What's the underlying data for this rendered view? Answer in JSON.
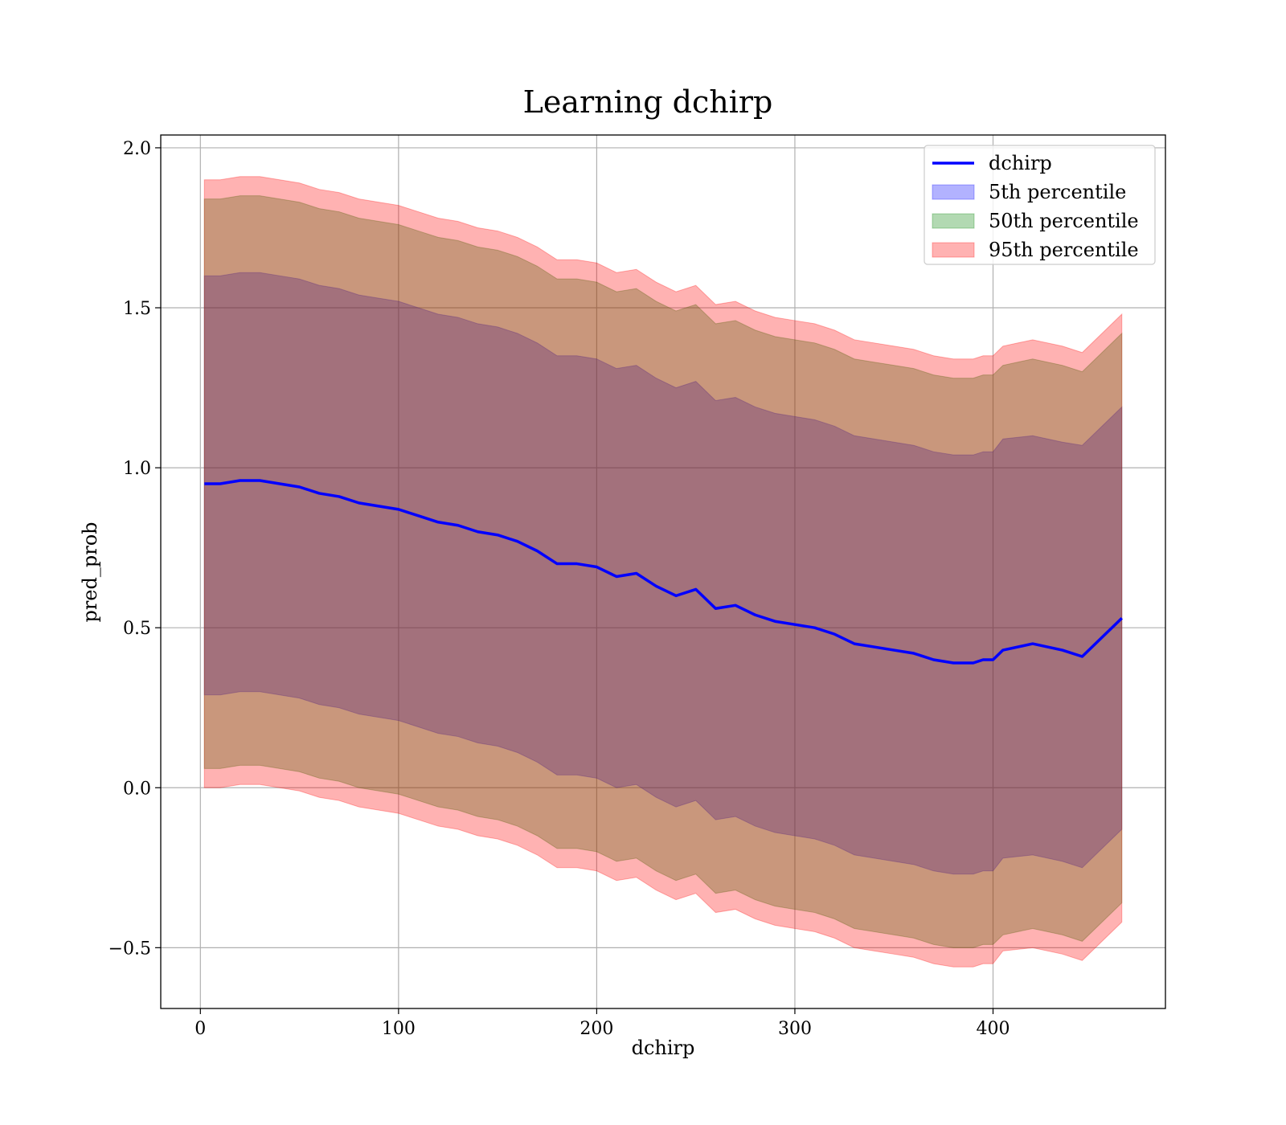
{
  "chart_data": {
    "type": "area",
    "title": "Learning dchirp",
    "xlabel": "dchirp",
    "ylabel": "pred_prob",
    "xlim": [
      -20,
      487
    ],
    "ylim": [
      -0.69,
      2.04
    ],
    "xticks": [
      0,
      100,
      200,
      300,
      400
    ],
    "xtick_labels": [
      "0",
      "100",
      "200",
      "300",
      "400"
    ],
    "yticks": [
      -0.5,
      0.0,
      0.5,
      1.0,
      1.5,
      2.0
    ],
    "ytick_labels": [
      "−0.5",
      "0.0",
      "0.5",
      "1.0",
      "1.5",
      "2.0"
    ],
    "grid": true,
    "legend_position": "top-right",
    "x": [
      2,
      10,
      20,
      30,
      40,
      50,
      60,
      70,
      80,
      90,
      100,
      110,
      120,
      130,
      140,
      150,
      160,
      170,
      180,
      190,
      200,
      210,
      220,
      230,
      240,
      250,
      260,
      270,
      280,
      290,
      300,
      310,
      320,
      330,
      340,
      350,
      360,
      370,
      380,
      390,
      395,
      400,
      405,
      420,
      435,
      445,
      465
    ],
    "series": [
      {
        "name": "dchirp",
        "kind": "line",
        "color": "#0000ff",
        "values": [
          0.95,
          0.95,
          0.96,
          0.96,
          0.95,
          0.94,
          0.92,
          0.91,
          0.89,
          0.88,
          0.87,
          0.85,
          0.83,
          0.82,
          0.8,
          0.79,
          0.77,
          0.74,
          0.7,
          0.7,
          0.69,
          0.66,
          0.67,
          0.63,
          0.6,
          0.62,
          0.56,
          0.57,
          0.54,
          0.52,
          0.51,
          0.5,
          0.48,
          0.45,
          0.44,
          0.43,
          0.42,
          0.4,
          0.39,
          0.39,
          0.4,
          0.4,
          0.43,
          0.45,
          0.43,
          0.41,
          0.53
        ]
      },
      {
        "name": "5th percentile",
        "kind": "band",
        "color": "#0000ff",
        "upper": [
          1.6,
          1.6,
          1.61,
          1.61,
          1.6,
          1.59,
          1.57,
          1.56,
          1.54,
          1.53,
          1.52,
          1.5,
          1.48,
          1.47,
          1.45,
          1.44,
          1.42,
          1.39,
          1.35,
          1.35,
          1.34,
          1.31,
          1.32,
          1.28,
          1.25,
          1.27,
          1.21,
          1.22,
          1.19,
          1.17,
          1.16,
          1.15,
          1.13,
          1.1,
          1.09,
          1.08,
          1.07,
          1.05,
          1.04,
          1.04,
          1.05,
          1.05,
          1.09,
          1.1,
          1.08,
          1.07,
          1.19
        ],
        "lower": [
          0.29,
          0.29,
          0.3,
          0.3,
          0.29,
          0.28,
          0.26,
          0.25,
          0.23,
          0.22,
          0.21,
          0.19,
          0.17,
          0.16,
          0.14,
          0.13,
          0.11,
          0.08,
          0.04,
          0.04,
          0.03,
          0.0,
          0.01,
          -0.03,
          -0.06,
          -0.04,
          -0.1,
          -0.09,
          -0.12,
          -0.14,
          -0.15,
          -0.16,
          -0.18,
          -0.21,
          -0.22,
          -0.23,
          -0.24,
          -0.26,
          -0.27,
          -0.27,
          -0.26,
          -0.26,
          -0.22,
          -0.21,
          -0.23,
          -0.25,
          -0.13
        ]
      },
      {
        "name": "50th percentile",
        "kind": "band",
        "color": "#008000",
        "upper": [
          1.84,
          1.84,
          1.85,
          1.85,
          1.84,
          1.83,
          1.81,
          1.8,
          1.78,
          1.77,
          1.76,
          1.74,
          1.72,
          1.71,
          1.69,
          1.68,
          1.66,
          1.63,
          1.59,
          1.59,
          1.58,
          1.55,
          1.56,
          1.52,
          1.49,
          1.51,
          1.45,
          1.46,
          1.43,
          1.41,
          1.4,
          1.39,
          1.37,
          1.34,
          1.33,
          1.32,
          1.31,
          1.29,
          1.28,
          1.28,
          1.29,
          1.29,
          1.32,
          1.34,
          1.32,
          1.3,
          1.42
        ],
        "lower": [
          0.06,
          0.06,
          0.07,
          0.07,
          0.06,
          0.05,
          0.03,
          0.02,
          0.0,
          -0.01,
          -0.02,
          -0.04,
          -0.06,
          -0.07,
          -0.09,
          -0.1,
          -0.12,
          -0.15,
          -0.19,
          -0.19,
          -0.2,
          -0.23,
          -0.22,
          -0.26,
          -0.29,
          -0.27,
          -0.33,
          -0.32,
          -0.35,
          -0.37,
          -0.38,
          -0.39,
          -0.41,
          -0.44,
          -0.45,
          -0.46,
          -0.47,
          -0.49,
          -0.5,
          -0.5,
          -0.49,
          -0.49,
          -0.46,
          -0.44,
          -0.46,
          -0.48,
          -0.36
        ]
      },
      {
        "name": "95th percentile",
        "kind": "band",
        "color": "#ff0000",
        "upper": [
          1.9,
          1.9,
          1.91,
          1.91,
          1.9,
          1.89,
          1.87,
          1.86,
          1.84,
          1.83,
          1.82,
          1.8,
          1.78,
          1.77,
          1.75,
          1.74,
          1.72,
          1.69,
          1.65,
          1.65,
          1.64,
          1.61,
          1.62,
          1.58,
          1.55,
          1.57,
          1.51,
          1.52,
          1.49,
          1.47,
          1.46,
          1.45,
          1.43,
          1.4,
          1.39,
          1.38,
          1.37,
          1.35,
          1.34,
          1.34,
          1.35,
          1.35,
          1.38,
          1.4,
          1.38,
          1.36,
          1.48
        ],
        "lower": [
          0.0,
          0.0,
          0.01,
          0.01,
          0.0,
          -0.01,
          -0.03,
          -0.04,
          -0.06,
          -0.07,
          -0.08,
          -0.1,
          -0.12,
          -0.13,
          -0.15,
          -0.16,
          -0.18,
          -0.21,
          -0.25,
          -0.25,
          -0.26,
          -0.29,
          -0.28,
          -0.32,
          -0.35,
          -0.33,
          -0.39,
          -0.38,
          -0.41,
          -0.43,
          -0.44,
          -0.45,
          -0.47,
          -0.5,
          -0.51,
          -0.52,
          -0.53,
          -0.55,
          -0.56,
          -0.56,
          -0.55,
          -0.55,
          -0.51,
          -0.5,
          -0.52,
          -0.54,
          -0.42
        ]
      }
    ]
  }
}
